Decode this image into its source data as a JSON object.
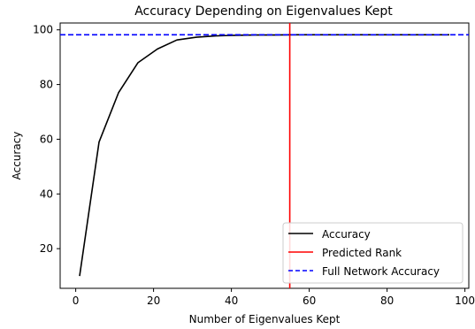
{
  "chart_data": {
    "type": "line",
    "title": "Accuracy Depending on Eigenvalues Kept",
    "xlabel": "Number of Eigenvalues Kept",
    "ylabel": "Accuracy",
    "xlim": [
      -4,
      101
    ],
    "ylim": [
      5.5,
      102.5
    ],
    "x_ticks": [
      0,
      20,
      40,
      60,
      80,
      100
    ],
    "y_ticks": [
      20,
      40,
      60,
      80,
      100
    ],
    "grid": false,
    "legend_position": "bottom-right",
    "series": [
      {
        "name": "Accuracy",
        "type": "line",
        "color": "#000000",
        "x": [
          1,
          6,
          11,
          16,
          21,
          26,
          31,
          36,
          41,
          46,
          51,
          56,
          61,
          66,
          71,
          76,
          81,
          86,
          91,
          96
        ],
        "y": [
          10,
          59,
          77,
          88,
          93,
          96.3,
          97.3,
          97.8,
          98,
          98.1,
          98.1,
          98.2,
          98.2,
          98.2,
          98.2,
          98.2,
          98.2,
          98.2,
          98.2,
          98.2
        ]
      }
    ],
    "reference_lines": [
      {
        "name": "Predicted Rank",
        "orientation": "vertical",
        "value": 55,
        "color": "#ff0000",
        "style": "solid"
      },
      {
        "name": "Full Network Accuracy",
        "orientation": "horizontal",
        "value": 98.2,
        "color": "#0000ff",
        "style": "dashed"
      }
    ]
  }
}
